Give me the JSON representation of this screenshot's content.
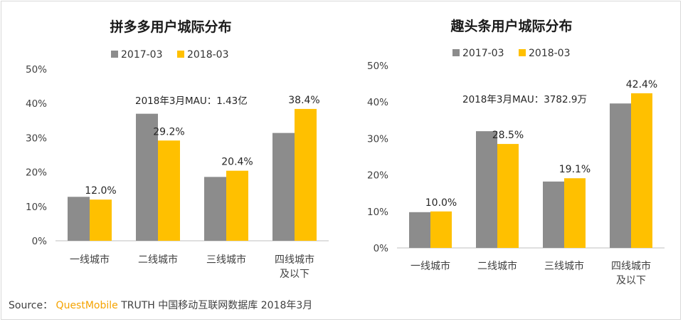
{
  "chart_data": [
    {
      "type": "bar",
      "title": "拼多多用户城际分布",
      "categories": [
        [
          "一线城市"
        ],
        [
          "二线城市"
        ],
        [
          "三线城市"
        ],
        [
          "四线城市",
          "及以下"
        ]
      ],
      "series": [
        {
          "name": "2017-03",
          "color": "#8c8c8c",
          "values": [
            12.8,
            37.0,
            18.6,
            31.4
          ]
        },
        {
          "name": "2018-03",
          "color": "#ffc000",
          "values": [
            12.0,
            29.2,
            20.4,
            38.4
          ]
        }
      ],
      "data_labels": [
        "12.0%",
        "29.2%",
        "20.4%",
        "38.4%"
      ],
      "ylim": [
        0,
        50
      ],
      "yticks": [
        "0%",
        "10%",
        "20%",
        "30%",
        "40%",
        "50%"
      ],
      "annotation": "2018年3月MAU：1.43亿",
      "xlabel": "",
      "ylabel": ""
    },
    {
      "type": "bar",
      "title": "趣头条用户城际分布",
      "categories": [
        [
          "一线城市"
        ],
        [
          "二线城市"
        ],
        [
          "三线城市"
        ],
        [
          "四线城市",
          "及以下"
        ]
      ],
      "series": [
        {
          "name": "2017-03",
          "color": "#8c8c8c",
          "values": [
            9.8,
            32.0,
            18.2,
            39.6
          ]
        },
        {
          "name": "2018-03",
          "color": "#ffc000",
          "values": [
            10.0,
            28.5,
            19.1,
            42.4
          ]
        }
      ],
      "data_labels": [
        "10.0%",
        "28.5%",
        "19.1%",
        "42.4%"
      ],
      "ylim": [
        0,
        50
      ],
      "yticks": [
        "0%",
        "10%",
        "20%",
        "30%",
        "40%",
        "50%"
      ],
      "annotation": "2018年3月MAU：3782.9万",
      "xlabel": "",
      "ylabel": ""
    }
  ],
  "source": {
    "prefix": "Source：",
    "brand": "QuestMobile",
    "suffix": "TRUTH 中国移动互联网数据库 2018年3月"
  }
}
